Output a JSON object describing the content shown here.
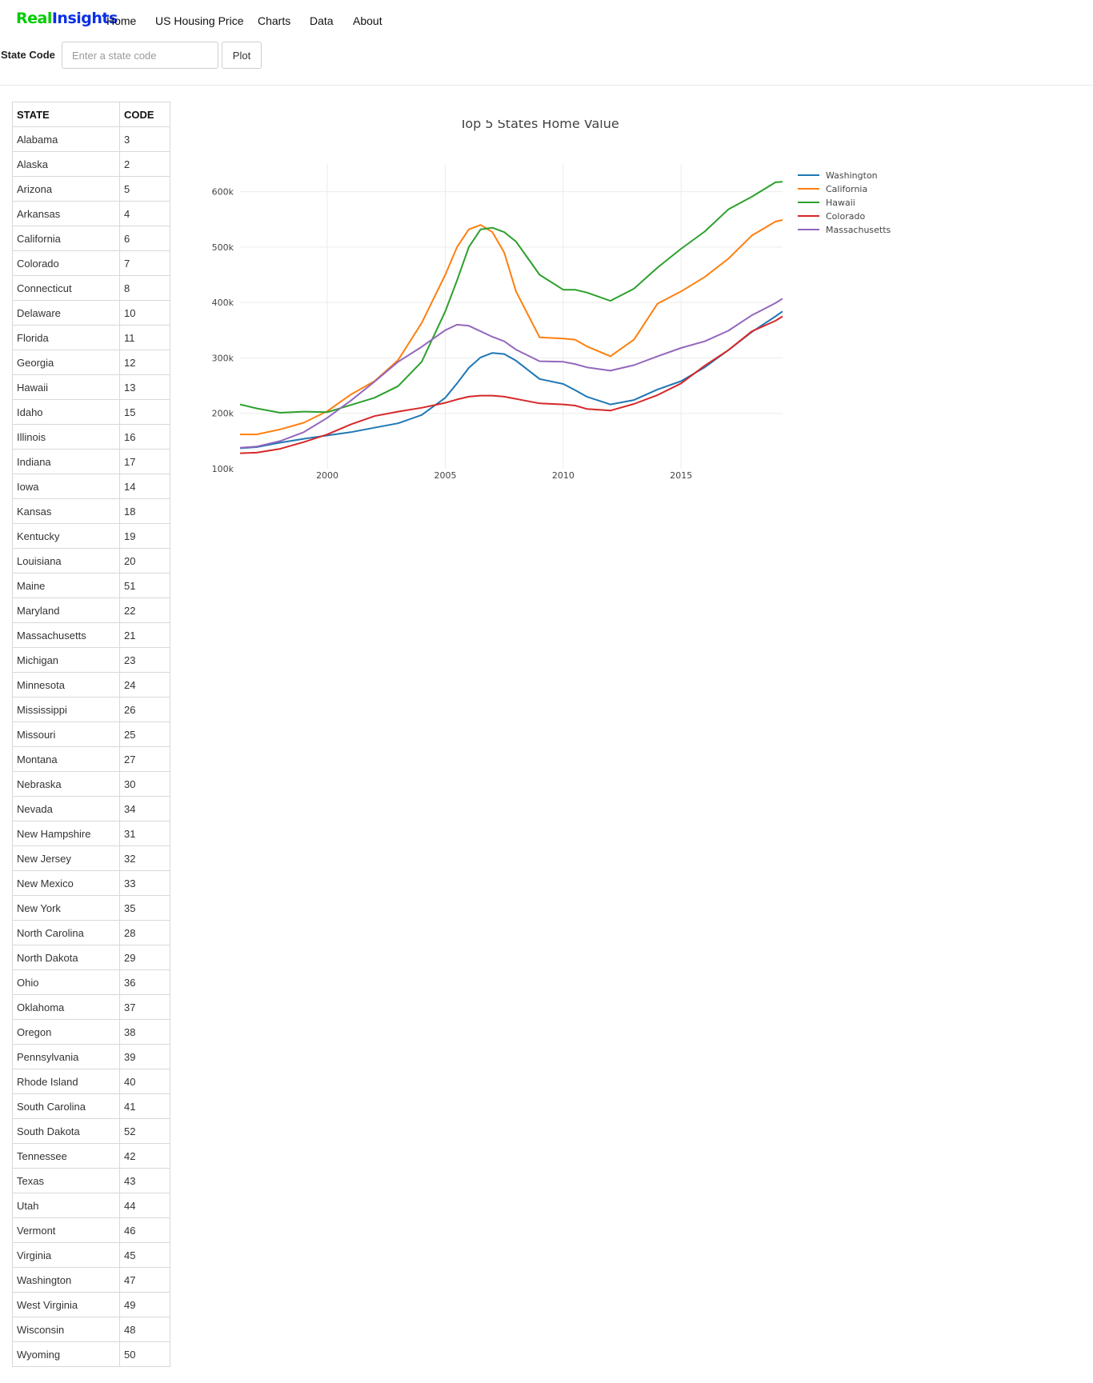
{
  "brand": {
    "part1": "Real",
    "part2": "Insights",
    "color1": "#00cc00",
    "color2": "#0a30e6"
  },
  "nav": [
    {
      "label": "Home"
    },
    {
      "label": "US Housing Price"
    },
    {
      "label": "Charts"
    },
    {
      "label": "Data"
    },
    {
      "label": "About"
    }
  ],
  "form": {
    "label": "State Code",
    "input_value": "",
    "placeholder": "Enter a state code",
    "button_label": "Plot"
  },
  "table": {
    "headers": [
      "STATE",
      "CODE"
    ],
    "rows": [
      [
        "Alabama",
        "3"
      ],
      [
        "Alaska",
        "2"
      ],
      [
        "Arizona",
        "5"
      ],
      [
        "Arkansas",
        "4"
      ],
      [
        "California",
        "6"
      ],
      [
        "Colorado",
        "7"
      ],
      [
        "Connecticut",
        "8"
      ],
      [
        "Delaware",
        "10"
      ],
      [
        "Florida",
        "11"
      ],
      [
        "Georgia",
        "12"
      ],
      [
        "Hawaii",
        "13"
      ],
      [
        "Idaho",
        "15"
      ],
      [
        "Illinois",
        "16"
      ],
      [
        "Indiana",
        "17"
      ],
      [
        "Iowa",
        "14"
      ],
      [
        "Kansas",
        "18"
      ],
      [
        "Kentucky",
        "19"
      ],
      [
        "Louisiana",
        "20"
      ],
      [
        "Maine",
        "51"
      ],
      [
        "Maryland",
        "22"
      ],
      [
        "Massachusetts",
        "21"
      ],
      [
        "Michigan",
        "23"
      ],
      [
        "Minnesota",
        "24"
      ],
      [
        "Mississippi",
        "26"
      ],
      [
        "Missouri",
        "25"
      ],
      [
        "Montana",
        "27"
      ],
      [
        "Nebraska",
        "30"
      ],
      [
        "Nevada",
        "34"
      ],
      [
        "New Hampshire",
        "31"
      ],
      [
        "New Jersey",
        "32"
      ],
      [
        "New Mexico",
        "33"
      ],
      [
        "New York",
        "35"
      ],
      [
        "North Carolina",
        "28"
      ],
      [
        "North Dakota",
        "29"
      ],
      [
        "Ohio",
        "36"
      ],
      [
        "Oklahoma",
        "37"
      ],
      [
        "Oregon",
        "38"
      ],
      [
        "Pennsylvania",
        "39"
      ],
      [
        "Rhode Island",
        "40"
      ],
      [
        "South Carolina",
        "41"
      ],
      [
        "South Dakota",
        "52"
      ],
      [
        "Tennessee",
        "42"
      ],
      [
        "Texas",
        "43"
      ],
      [
        "Utah",
        "44"
      ],
      [
        "Vermont",
        "46"
      ],
      [
        "Virginia",
        "45"
      ],
      [
        "Washington",
        "47"
      ],
      [
        "West Virginia",
        "49"
      ],
      [
        "Wisconsin",
        "48"
      ],
      [
        "Wyoming",
        "50"
      ]
    ]
  },
  "chart_data": {
    "type": "line",
    "title": "Top 5 States Home Value",
    "xlabel": "",
    "ylabel": "",
    "xlim": [
      1996.3,
      2019.3
    ],
    "ylim": [
      100000,
      650000
    ],
    "xticks": [
      2000,
      2005,
      2010,
      2015
    ],
    "xtick_labels": [
      "2000",
      "2005",
      "2010",
      "2015"
    ],
    "yticks": [
      100000,
      200000,
      300000,
      400000,
      500000,
      600000
    ],
    "ytick_labels": [
      "100k",
      "200k",
      "300k",
      "400k",
      "500k",
      "600k"
    ],
    "grid": true,
    "legend_position": "right",
    "x": [
      1996.3,
      1997,
      1998,
      1999,
      2000,
      2001,
      2002,
      2003,
      2004,
      2005,
      2005.5,
      2006,
      2006.5,
      2007,
      2007.5,
      2008,
      2009,
      2010,
      2010.5,
      2011,
      2012,
      2013,
      2014,
      2015,
      2016,
      2017,
      2018,
      2019,
      2019.3
    ],
    "series": [
      {
        "name": "Washington",
        "color": "#1f77b4",
        "values": [
          137000,
          139000,
          147000,
          154000,
          160000,
          166000,
          174000,
          182000,
          197000,
          228000,
          254000,
          282000,
          301000,
          309000,
          307000,
          295000,
          262000,
          253000,
          242000,
          230000,
          216000,
          224000,
          243000,
          258000,
          283000,
          314000,
          347000,
          375000,
          384000
        ]
      },
      {
        "name": "California",
        "color": "#ff7f0e",
        "values": [
          162000,
          162000,
          171000,
          183000,
          204000,
          234000,
          258000,
          296000,
          363000,
          450000,
          500000,
          532000,
          540000,
          527000,
          490000,
          420000,
          337000,
          335000,
          333000,
          321000,
          303000,
          333000,
          398000,
          420000,
          446000,
          479000,
          521000,
          546000,
          549000
        ]
      },
      {
        "name": "Hawaii",
        "color": "#2ca02c",
        "values": [
          216000,
          209000,
          201000,
          203000,
          202000,
          215000,
          228000,
          249000,
          293000,
          384000,
          440000,
          500000,
          532000,
          535000,
          527000,
          510000,
          450000,
          423000,
          423000,
          418000,
          403000,
          425000,
          463000,
          497000,
          528000,
          568000,
          591000,
          617000,
          618000
        ]
      },
      {
        "name": "Colorado",
        "color": "#d62728",
        "values": [
          128000,
          129000,
          136000,
          148000,
          162000,
          180000,
          195000,
          203000,
          210000,
          219000,
          225000,
          230000,
          232000,
          232000,
          230000,
          226000,
          218000,
          216000,
          214000,
          208000,
          205000,
          217000,
          233000,
          254000,
          286000,
          314000,
          348000,
          367000,
          375000
        ]
      },
      {
        "name": "Massachusetts",
        "color": "#9467bd",
        "values": [
          138000,
          140000,
          150000,
          166000,
          192000,
          223000,
          257000,
          293000,
          320000,
          350000,
          360000,
          358000,
          348000,
          338000,
          330000,
          315000,
          294000,
          293000,
          289000,
          283000,
          277000,
          287000,
          303000,
          318000,
          330000,
          349000,
          377000,
          399000,
          407000
        ]
      }
    ]
  }
}
